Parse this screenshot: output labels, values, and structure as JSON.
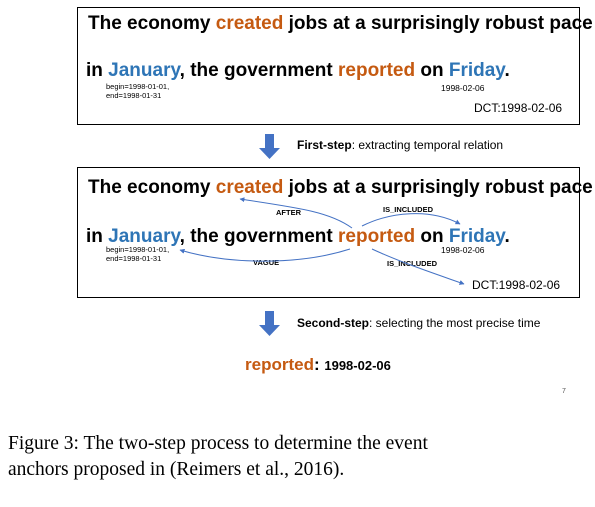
{
  "box1": {
    "line1": {
      "pre": "The economy ",
      "event": "created",
      "post": " jobs at a surprisingly robust pace"
    },
    "line2": {
      "pre": "in ",
      "time": "January",
      "mid": ", the government ",
      "event": "reported",
      "on": " on ",
      "time2": "Friday",
      "end": "."
    },
    "january_begin": "begin=1998-01-01,",
    "january_end": "end=1998-01-31",
    "friday_date": "1998-02-06",
    "dct": "DCT:1998-02-06"
  },
  "step1": {
    "bold": "First-step",
    "text": ": extracting temporal relation"
  },
  "box2": {
    "line1": {
      "pre": "The economy ",
      "event": "created",
      "post": " jobs at a surprisingly robust pace"
    },
    "line2": {
      "pre": "in ",
      "time": "January",
      "mid": ", the government ",
      "event": "reported",
      "on": " on ",
      "time2": "Friday",
      "end": "."
    },
    "january_begin": "begin=1998-01-01,",
    "january_end": "end=1998-01-31",
    "friday_date": "1998-02-06",
    "dct": "DCT:1998-02-06",
    "relations": {
      "after": "AFTER",
      "is_included_top": "IS_INCLUDED",
      "vague": "VAGUE",
      "is_included_bottom": "IS_INCLUDED"
    }
  },
  "step2": {
    "bold": "Second-step",
    "text": ": selecting the most precise time"
  },
  "result": {
    "event": "reported",
    "colon": ": ",
    "date": "1998-02-06"
  },
  "page_number": "7",
  "caption": {
    "line1": "Figure 3: The two-step process to determine the event",
    "line2": "anchors proposed in (Reimers et al., 2016)."
  },
  "colors": {
    "event": "#c55a11",
    "time": "#2e75b6",
    "arrow": "#4472c4"
  }
}
